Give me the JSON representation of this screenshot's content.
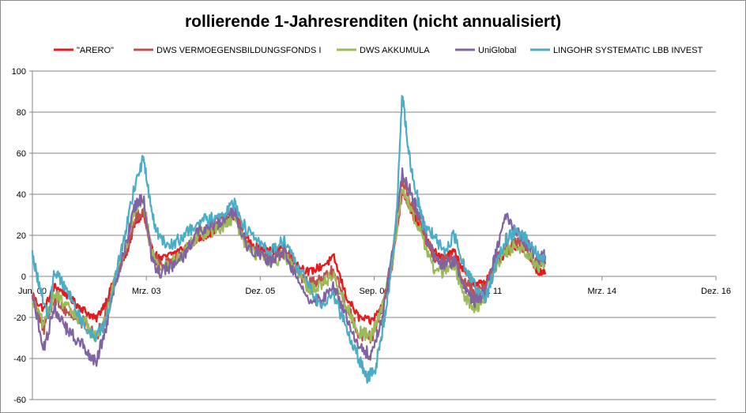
{
  "chart_data": {
    "type": "line",
    "title": "rollierende 1-Jahresrenditen (nicht annualisiert)",
    "xlabel": "",
    "ylabel": "",
    "ylim": [
      -60,
      100
    ],
    "y_ticks": [
      -60,
      -40,
      -20,
      0,
      20,
      40,
      60,
      80,
      100
    ],
    "x_range": [
      2000.42,
      2016.92
    ],
    "x_ticks": [
      {
        "label": "Jun. 00",
        "x": 2000.42
      },
      {
        "label": "Mrz. 03",
        "x": 2003.17
      },
      {
        "label": "Dez. 05",
        "x": 2005.92
      },
      {
        "label": "Sep. 08",
        "x": 2008.67
      },
      {
        "label": "Jun. 11",
        "x": 2011.42
      },
      {
        "label": "Mrz. 14",
        "x": 2014.17
      },
      {
        "label": "Dez. 16",
        "x": 2016.92
      }
    ],
    "grid": "horizontal",
    "legend_position": "top",
    "series": [
      {
        "name": "\"ARERO\"",
        "color": "#e41a1c",
        "x": [
          2000.42,
          2000.7,
          2000.95,
          2001.2,
          2001.45,
          2001.7,
          2001.95,
          2002.2,
          2002.45,
          2002.7,
          2002.9,
          2003.1,
          2003.3,
          2003.5,
          2003.8,
          2004.1,
          2004.4,
          2004.7,
          2005.0,
          2005.3,
          2005.6,
          2005.9,
          2006.2,
          2006.5,
          2006.8,
          2007.1,
          2007.4,
          2007.7,
          2008.0,
          2008.3,
          2008.6,
          2008.85,
          2009.1,
          2009.35,
          2009.6,
          2009.85,
          2010.1,
          2010.35,
          2010.6,
          2010.85,
          2011.1,
          2011.35,
          2011.6,
          2011.85,
          2012.1,
          2012.35,
          2012.6,
          2012.8
        ],
        "values": [
          -10,
          -16,
          -5,
          -8,
          -13,
          -17,
          -21,
          -12,
          1,
          12,
          26,
          30,
          13,
          8,
          11,
          14,
          18,
          21,
          25,
          30,
          18,
          14,
          12,
          15,
          6,
          2,
          5,
          9,
          -10,
          -20,
          -22,
          -15,
          5,
          42,
          30,
          20,
          12,
          9,
          12,
          2,
          -4,
          -3,
          5,
          12,
          15,
          12,
          3,
          1
        ]
      },
      {
        "name": "DWS VERMOEGENSBILDUNGSFONDS  I",
        "color": "#c0504d",
        "x": [
          2000.42,
          2000.7,
          2000.95,
          2001.2,
          2001.45,
          2001.7,
          2001.95,
          2002.2,
          2002.45,
          2002.7,
          2002.9,
          2003.1,
          2003.3,
          2003.5,
          2003.8,
          2004.1,
          2004.4,
          2004.7,
          2005.0,
          2005.3,
          2005.6,
          2005.9,
          2006.2,
          2006.5,
          2006.8,
          2007.1,
          2007.4,
          2007.7,
          2008.0,
          2008.3,
          2008.6,
          2008.85,
          2009.1,
          2009.35,
          2009.6,
          2009.85,
          2010.1,
          2010.35,
          2010.6,
          2010.85,
          2011.1,
          2011.35,
          2011.6,
          2011.85,
          2012.1,
          2012.35,
          2012.6,
          2012.8
        ],
        "values": [
          -8,
          -26,
          -10,
          -16,
          -20,
          -23,
          -30,
          -18,
          0,
          14,
          28,
          33,
          11,
          6,
          9,
          13,
          20,
          24,
          26,
          31,
          16,
          12,
          9,
          13,
          3,
          -4,
          -2,
          3,
          -14,
          -28,
          -30,
          -17,
          8,
          48,
          34,
          22,
          10,
          7,
          9,
          -2,
          -8,
          -5,
          7,
          14,
          17,
          14,
          5,
          6
        ]
      },
      {
        "name": "DWS AKKUMULA",
        "color": "#9bbb59",
        "x": [
          2000.42,
          2000.7,
          2000.95,
          2001.2,
          2001.45,
          2001.7,
          2001.95,
          2002.2,
          2002.45,
          2002.7,
          2002.9,
          2003.1,
          2003.3,
          2003.5,
          2003.8,
          2004.1,
          2004.4,
          2004.7,
          2005.0,
          2005.3,
          2005.6,
          2005.9,
          2006.2,
          2006.5,
          2006.8,
          2007.1,
          2007.4,
          2007.7,
          2008.0,
          2008.3,
          2008.6,
          2008.85,
          2009.1,
          2009.35,
          2009.6,
          2009.85,
          2010.1,
          2010.35,
          2010.6,
          2010.85,
          2011.1,
          2011.35,
          2011.6,
          2011.85,
          2012.1,
          2012.35,
          2012.6,
          2012.8
        ],
        "values": [
          -12,
          -24,
          -8,
          -14,
          -19,
          -22,
          -30,
          -20,
          2,
          16,
          34,
          37,
          12,
          4,
          7,
          12,
          20,
          22,
          24,
          28,
          14,
          10,
          6,
          10,
          2,
          -6,
          -4,
          1,
          -15,
          -27,
          -29,
          -16,
          6,
          44,
          30,
          18,
          4,
          2,
          6,
          -10,
          -16,
          -10,
          5,
          12,
          15,
          12,
          4,
          8
        ]
      },
      {
        "name": "UniGlobal",
        "color": "#8064a2",
        "x": [
          2000.42,
          2000.7,
          2000.95,
          2001.2,
          2001.45,
          2001.7,
          2001.95,
          2002.2,
          2002.45,
          2002.7,
          2002.9,
          2003.1,
          2003.3,
          2003.5,
          2003.8,
          2004.1,
          2004.4,
          2004.7,
          2005.0,
          2005.3,
          2005.6,
          2005.9,
          2006.2,
          2006.5,
          2006.8,
          2007.1,
          2007.4,
          2007.7,
          2008.0,
          2008.3,
          2008.6,
          2008.85,
          2009.1,
          2009.35,
          2009.6,
          2009.85,
          2010.1,
          2010.35,
          2010.6,
          2010.85,
          2011.1,
          2011.35,
          2011.6,
          2011.85,
          2012.1,
          2012.35,
          2012.6,
          2012.8
        ],
        "values": [
          -10,
          -35,
          -15,
          -25,
          -30,
          -35,
          -42,
          -25,
          -2,
          18,
          35,
          38,
          8,
          2,
          5,
          10,
          22,
          25,
          27,
          32,
          15,
          11,
          7,
          12,
          0,
          -10,
          -12,
          -5,
          -20,
          -35,
          -38,
          -22,
          10,
          52,
          38,
          26,
          10,
          5,
          8,
          -6,
          -12,
          -8,
          10,
          30,
          22,
          16,
          8,
          10
        ]
      },
      {
        "name": "LINGOHR SYSTEMATIC  LBB INVEST",
        "color": "#4bacc6",
        "x": [
          2000.42,
          2000.6,
          2000.8,
          2000.95,
          2001.2,
          2001.45,
          2001.7,
          2001.95,
          2002.2,
          2002.45,
          2002.7,
          2002.9,
          2003.1,
          2003.3,
          2003.5,
          2003.8,
          2004.1,
          2004.4,
          2004.7,
          2005.0,
          2005.3,
          2005.6,
          2005.9,
          2006.2,
          2006.5,
          2006.8,
          2007.1,
          2007.4,
          2007.7,
          2008.0,
          2008.3,
          2008.5,
          2008.7,
          2008.85,
          2009.0,
          2009.2,
          2009.35,
          2009.5,
          2009.7,
          2009.85,
          2010.1,
          2010.35,
          2010.6,
          2010.85,
          2011.1,
          2011.35,
          2011.6,
          2011.85,
          2012.1,
          2012.35,
          2012.6,
          2012.8
        ],
        "values": [
          10,
          -5,
          -20,
          2,
          -5,
          -15,
          -25,
          -30,
          -22,
          2,
          25,
          45,
          58,
          30,
          18,
          16,
          20,
          26,
          28,
          30,
          36,
          22,
          16,
          12,
          18,
          5,
          -5,
          -15,
          -10,
          -25,
          -40,
          -50,
          -45,
          -28,
          -10,
          25,
          90,
          60,
          40,
          25,
          20,
          12,
          20,
          5,
          -5,
          -12,
          5,
          18,
          22,
          18,
          12,
          8
        ]
      }
    ]
  }
}
